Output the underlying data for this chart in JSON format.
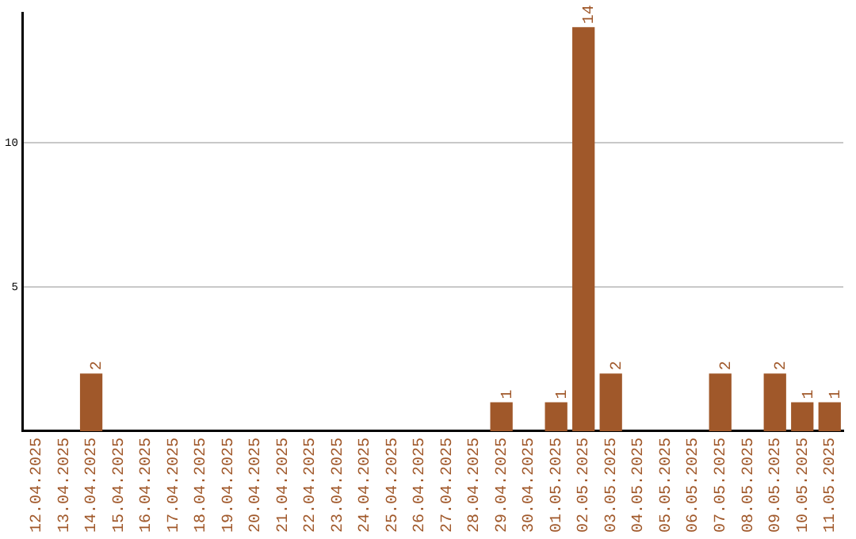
{
  "chart_data": {
    "type": "bar",
    "categories": [
      "12.04.2025",
      "13.04.2025",
      "14.04.2025",
      "15.04.2025",
      "16.04.2025",
      "17.04.2025",
      "18.04.2025",
      "19.04.2025",
      "20.04.2025",
      "21.04.2025",
      "22.04.2025",
      "23.04.2025",
      "24.04.2025",
      "25.04.2025",
      "26.04.2025",
      "27.04.2025",
      "28.04.2025",
      "29.04.2025",
      "30.04.2025",
      "01.05.2025",
      "02.05.2025",
      "03.05.2025",
      "04.05.2025",
      "05.05.2025",
      "06.05.2025",
      "07.05.2025",
      "08.05.2025",
      "09.05.2025",
      "10.05.2025",
      "11.05.2025"
    ],
    "values": [
      0,
      0,
      2,
      0,
      0,
      0,
      0,
      0,
      0,
      0,
      0,
      0,
      0,
      0,
      0,
      0,
      0,
      1,
      0,
      1,
      14,
      2,
      0,
      0,
      0,
      2,
      0,
      2,
      1,
      1
    ],
    "value_labels": [
      null,
      null,
      "2",
      null,
      null,
      null,
      null,
      null,
      null,
      null,
      null,
      null,
      null,
      null,
      null,
      null,
      null,
      "1",
      null,
      "1",
      "14",
      "2",
      null,
      null,
      null,
      "2",
      null,
      "2",
      "1",
      "1"
    ],
    "color": "#a0582a",
    "ylim": [
      0,
      14.5
    ],
    "yticks": [
      5,
      10
    ],
    "grid": "y",
    "legend": false
  }
}
